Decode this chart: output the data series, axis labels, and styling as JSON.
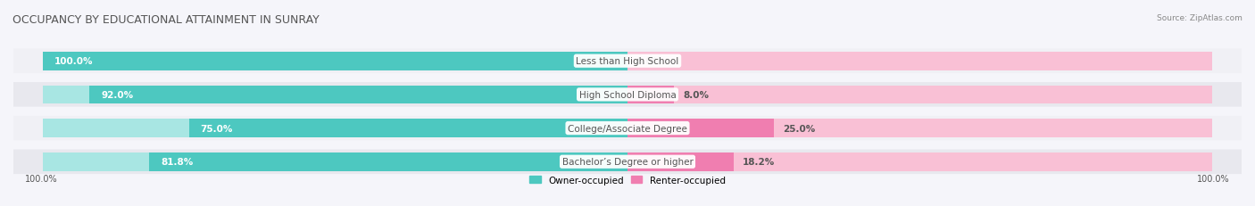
{
  "title": "OCCUPANCY BY EDUCATIONAL ATTAINMENT IN SUNRAY",
  "source": "Source: ZipAtlas.com",
  "categories": [
    "Less than High School",
    "High School Diploma",
    "College/Associate Degree",
    "Bachelor’s Degree or higher"
  ],
  "owner_values": [
    100.0,
    92.0,
    75.0,
    81.8
  ],
  "renter_values": [
    0.0,
    8.0,
    25.0,
    18.2
  ],
  "owner_color": "#4DC8C0",
  "renter_color": "#F07EB0",
  "owner_color_light": "#A8E6E3",
  "renter_color_light": "#F9C0D5",
  "bar_bg_color": "#E8E8EE",
  "row_bg_colors": [
    "#F0F0F5",
    "#E8E8EE"
  ],
  "title_color": "#555555",
  "text_color": "#555555",
  "label_fontsize": 7.5,
  "title_fontsize": 9,
  "legend_label_owner": "Owner-occupied",
  "legend_label_renter": "Renter-occupied",
  "x_left_label": "100.0%",
  "x_right_label": "100.0%",
  "bar_height": 0.55,
  "total_width": 100.0
}
